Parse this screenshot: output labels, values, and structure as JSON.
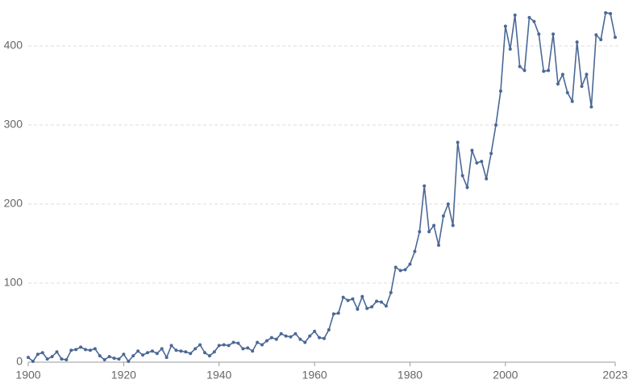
{
  "chart_data": {
    "type": "line",
    "x": [
      1900,
      1901,
      1902,
      1903,
      1904,
      1905,
      1906,
      1907,
      1908,
      1909,
      1910,
      1911,
      1912,
      1913,
      1914,
      1915,
      1916,
      1917,
      1918,
      1919,
      1920,
      1921,
      1922,
      1923,
      1924,
      1925,
      1926,
      1927,
      1928,
      1929,
      1930,
      1931,
      1932,
      1933,
      1934,
      1935,
      1936,
      1937,
      1938,
      1939,
      1940,
      1941,
      1942,
      1943,
      1944,
      1945,
      1946,
      1947,
      1948,
      1949,
      1950,
      1951,
      1952,
      1953,
      1954,
      1955,
      1956,
      1957,
      1958,
      1959,
      1960,
      1961,
      1962,
      1963,
      1964,
      1965,
      1966,
      1967,
      1968,
      1969,
      1970,
      1971,
      1972,
      1973,
      1974,
      1975,
      1976,
      1977,
      1978,
      1979,
      1980,
      1981,
      1982,
      1983,
      1984,
      1985,
      1986,
      1987,
      1988,
      1989,
      1990,
      1991,
      1992,
      1993,
      1994,
      1995,
      1996,
      1997,
      1998,
      1999,
      2000,
      2001,
      2002,
      2003,
      2004,
      2005,
      2006,
      2007,
      2008,
      2009,
      2010,
      2011,
      2012,
      2013,
      2014,
      2015,
      2016,
      2017,
      2018,
      2019,
      2020,
      2021,
      2022,
      2023
    ],
    "series": [
      {
        "color": "#4a6896",
        "values": [
          6,
          1,
          10,
          12,
          4,
          7,
          13,
          4,
          3,
          15,
          16,
          19,
          16,
          15,
          17,
          8,
          3,
          7,
          5,
          4,
          10,
          1,
          8,
          14,
          9,
          12,
          14,
          11,
          17,
          6,
          21,
          15,
          14,
          13,
          11,
          17,
          22,
          12,
          8,
          13,
          21,
          22,
          21,
          25,
          24,
          17,
          18,
          14,
          25,
          22,
          27,
          31,
          29,
          36,
          33,
          32,
          36,
          29,
          25,
          33,
          39,
          31,
          30,
          41,
          61,
          62,
          82,
          78,
          80,
          67,
          83,
          68,
          70,
          77,
          76,
          71,
          88,
          120,
          116,
          117,
          124,
          140,
          165,
          223,
          165,
          173,
          148,
          185,
          200,
          173,
          278,
          236,
          221,
          268,
          252,
          254,
          232,
          264,
          300,
          343,
          425,
          396,
          439,
          374,
          369,
          436,
          431,
          415,
          368,
          369,
          415,
          352,
          364,
          341,
          330,
          405,
          349,
          364,
          323,
          414,
          408,
          442,
          441,
          411
        ]
      }
    ],
    "xlim": [
      1900,
      2023
    ],
    "xticks": [
      1900,
      1920,
      1940,
      1960,
      1980,
      2000,
      2023
    ],
    "ylim": [
      0,
      450
    ],
    "yticks": [
      0,
      100,
      200,
      300,
      400
    ],
    "grid": true
  }
}
